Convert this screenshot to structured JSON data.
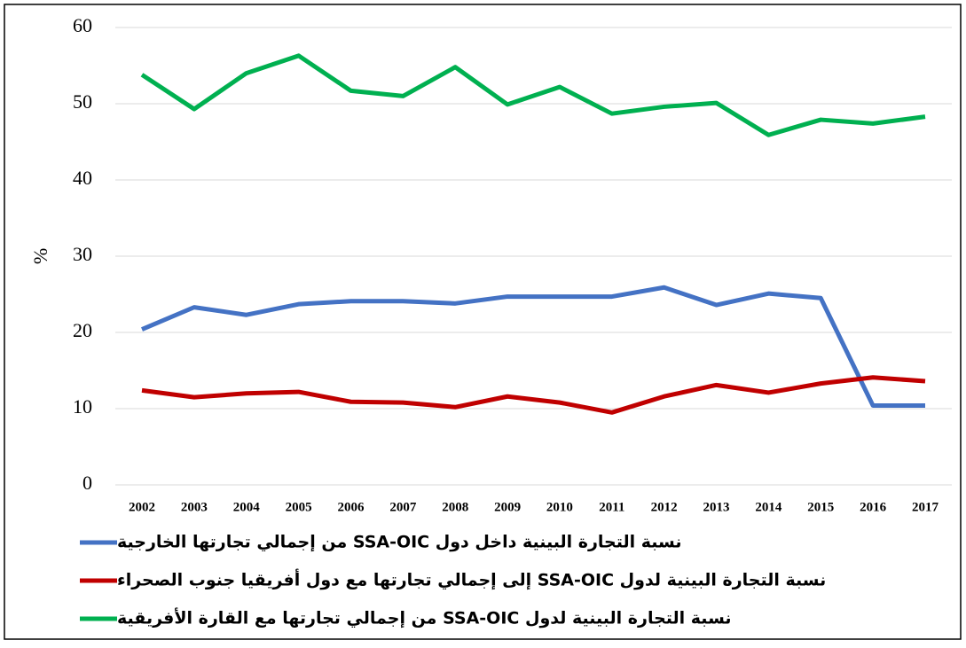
{
  "chart_data": {
    "type": "line",
    "y_label": "%",
    "categories": [
      "2002",
      "2003",
      "2004",
      "2005",
      "2006",
      "2007",
      "2008",
      "2009",
      "2010",
      "2011",
      "2012",
      "2013",
      "2014",
      "2015",
      "2016",
      "2017"
    ],
    "series": [
      {
        "name": "نسبة التجارة البينية داخل دول SSA-OIC من إجمالي تجارتها الخارجية",
        "color": "#4472c4",
        "values": [
          20.4,
          23.3,
          22.3,
          23.7,
          24.1,
          24.1,
          23.8,
          24.7,
          24.7,
          24.7,
          25.9,
          23.6,
          25.1,
          24.5,
          10.4,
          10.4
        ]
      },
      {
        "name": "نسبة التجارة البينية لدول SSA-OIC إلى إجمالي تجارتها مع دول أفريقيا جنوب الصحراء",
        "color": "#c00000",
        "values": [
          12.4,
          11.5,
          12.0,
          12.2,
          10.9,
          10.8,
          10.2,
          11.6,
          10.8,
          9.5,
          11.6,
          13.1,
          12.1,
          13.3,
          14.1,
          13.6
        ]
      },
      {
        "name": "نسبة التجارة البينية لدول SSA-OIC من إجمالي تجارتها مع القارة الأفريقية",
        "color": "#00b050",
        "values": [
          53.8,
          49.3,
          54.0,
          56.3,
          51.7,
          51.0,
          54.8,
          49.9,
          52.2,
          48.7,
          49.6,
          50.1,
          45.9,
          47.9,
          47.4,
          48.3
        ]
      }
    ],
    "ylim": [
      0,
      60
    ],
    "yticks": [
      0,
      10,
      20,
      30,
      40,
      50,
      60
    ],
    "grid": true,
    "legend": "bottom"
  }
}
